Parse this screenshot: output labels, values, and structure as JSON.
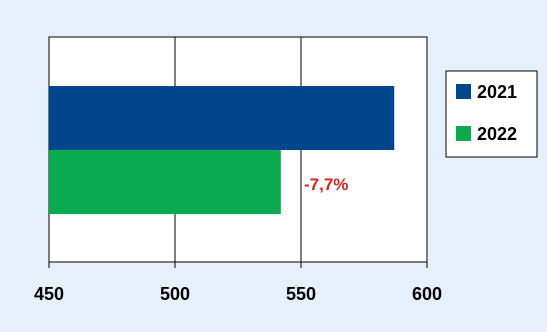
{
  "chart_data": {
    "type": "bar",
    "orientation": "horizontal",
    "title": "",
    "xlabel": "",
    "ylabel": "",
    "xlim": [
      450,
      600
    ],
    "x_ticks": [
      450,
      500,
      550,
      600
    ],
    "grid": "vertical",
    "legend_position": "right",
    "series": [
      {
        "name": "2021",
        "value": 587,
        "color": "#00468c"
      },
      {
        "name": "2022",
        "value": 542,
        "color": "#0aaa50"
      }
    ],
    "annotation": {
      "text": "-7,7%",
      "color": "#e02020"
    }
  }
}
